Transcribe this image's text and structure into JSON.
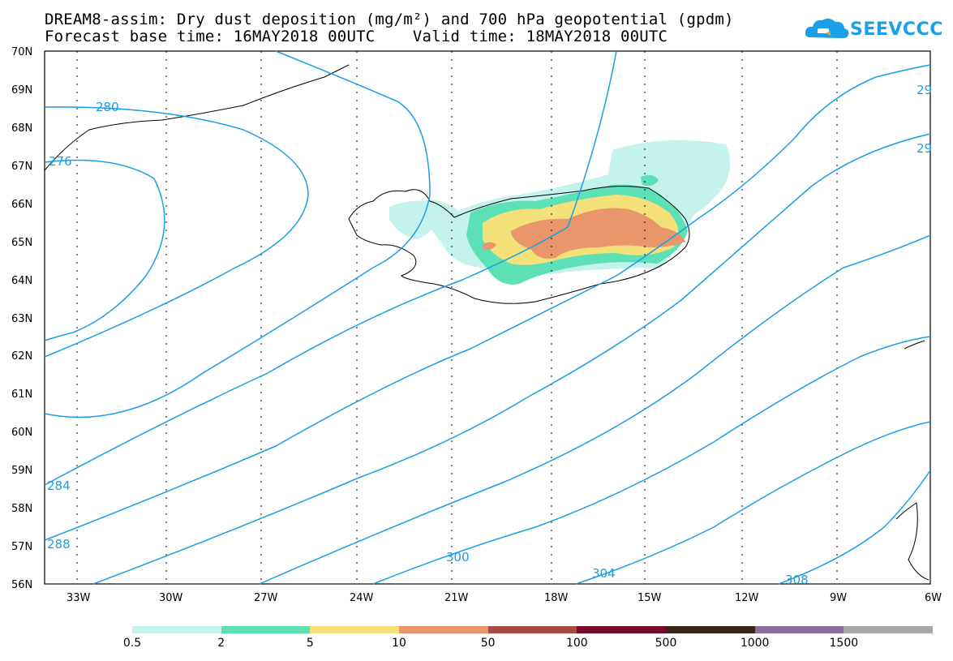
{
  "title": {
    "line1": "DREAM8-assim: Dry dust deposition (mg/m²) and 700 hPa geopotential (gpdm)",
    "line2": "Forecast base time: 16MAY2018 00UTC    Valid time: 18MAY2018 00UTC"
  },
  "logo": {
    "text": "SEEVCCC",
    "color": "#1aa0e8"
  },
  "latitude_labels": [
    "70N",
    "69N",
    "68N",
    "67N",
    "66N",
    "65N",
    "64N",
    "63N",
    "62N",
    "61N",
    "60N",
    "59N",
    "58N",
    "57N",
    "56N"
  ],
  "longitude_labels": [
    "33W",
    "30W",
    "27W",
    "24W",
    "21W",
    "18W",
    "15W",
    "12W",
    "9W",
    "6W"
  ],
  "contour_labels": [
    "280",
    "276",
    "284",
    "288",
    "300",
    "304",
    "308",
    "29",
    "29"
  ],
  "contour_color": "#1a9ee8",
  "legend": {
    "colors": [
      "#c4f2ec",
      "#5ee0b6",
      "#f5e17a",
      "#e8966a",
      "#a84a45",
      "#7a0a2a",
      "#3a2418",
      "#8c6c9c",
      "#a8a8a8"
    ],
    "labels": [
      "0.5",
      "2",
      "5",
      "10",
      "50",
      "100",
      "500",
      "1000",
      "1500"
    ]
  }
}
